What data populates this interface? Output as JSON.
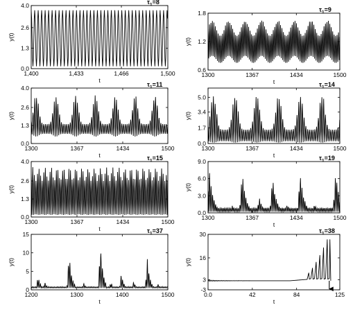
{
  "figure": {
    "colors": {
      "line": "#000000",
      "axes": "#000000",
      "background": "#ffffff"
    }
  },
  "chart_data": [
    {
      "id": "p1",
      "type": "line",
      "title_symbol": "τ",
      "title_sub": "1",
      "title_rest": "=8",
      "xlabel": "t",
      "ylabel": "y(t)",
      "xlim": [
        1400,
        1500
      ],
      "ylim": [
        0,
        4.0
      ],
      "xticks": [
        1400,
        1433,
        1466,
        1500
      ],
      "xtick_labels": [
        "1,400",
        "1,433",
        "1,466",
        "1,500"
      ],
      "yticks": [
        0,
        1.3,
        2.6,
        4.0
      ],
      "ytick_labels": [
        "0.0",
        "1.3",
        "2.6",
        "4.0"
      ],
      "grid": false,
      "series": [
        {
          "pattern": "regular",
          "period": 2.55,
          "min": 0.15,
          "max": 3.7
        }
      ]
    },
    {
      "id": "p2",
      "type": "line",
      "title_symbol": "τ",
      "title_sub": "1",
      "title_rest": "=9",
      "xlabel": "t",
      "ylabel": "y(t)",
      "xlim": [
        1300,
        1500
      ],
      "ylim": [
        0.6,
        1.8
      ],
      "xticks": [
        1300,
        1367,
        1434,
        1500
      ],
      "xtick_labels": [
        "1300",
        "1367",
        "1434",
        "1500"
      ],
      "yticks": [
        0.6,
        1.2,
        1.8
      ],
      "ytick_labels": [
        "0.6",
        "1.2",
        "1.8"
      ],
      "grid": false,
      "series": [
        {
          "pattern": "modulated",
          "period": 2.2,
          "mod_period": 25,
          "base_min": 0.75,
          "base_max": 1.32,
          "peak_max": 1.65,
          "trough_min": 0.9
        }
      ]
    },
    {
      "id": "p3",
      "type": "line",
      "title_symbol": "τ",
      "title_sub": "1",
      "title_rest": "=11",
      "xlabel": "t",
      "ylabel": "y(t)",
      "xlim": [
        1300,
        1500
      ],
      "ylim": [
        0,
        4.0
      ],
      "xticks": [
        1300,
        1367,
        1434,
        1500
      ],
      "xtick_labels": [
        "1300",
        "1367",
        "1434",
        "1500"
      ],
      "yticks": [
        0,
        1.3,
        2.6,
        4.0
      ],
      "ytick_labels": [
        "0.0",
        "1.3",
        "2.6",
        "4.0"
      ],
      "grid": false,
      "series": [
        {
          "pattern": "spiky",
          "period": 2.6,
          "mod_period": 29,
          "base_min": 0.7,
          "base_max": 1.4,
          "peak_max": 3.6,
          "trough_min": 0.5
        }
      ]
    },
    {
      "id": "p4",
      "type": "line",
      "title_symbol": "τ",
      "title_sub": "1",
      "title_rest": "=14",
      "xlabel": "t",
      "ylabel": "y(t)",
      "xlim": [
        1300,
        1500
      ],
      "ylim": [
        0,
        6.0
      ],
      "xticks": [
        1300,
        1367,
        1434,
        1500
      ],
      "xtick_labels": [
        "1300",
        "1367",
        "1434",
        "1500"
      ],
      "yticks": [
        0,
        1.7,
        3.4,
        5.0
      ],
      "ytick_labels": [
        "0.0",
        "1.7",
        "3.4",
        "5.0"
      ],
      "grid": false,
      "series": [
        {
          "pattern": "spiky",
          "period": 2.7,
          "mod_period": 33,
          "base_min": 0.25,
          "base_max": 1.5,
          "peak_max": 5.4,
          "trough_min": 0.1
        }
      ]
    },
    {
      "id": "p5",
      "type": "line",
      "title_symbol": "τ",
      "title_sub": "1",
      "title_rest": "=15",
      "xlabel": "t",
      "ylabel": "y(t)",
      "xlim": [
        1300,
        1500
      ],
      "ylim": [
        0,
        4.0
      ],
      "xticks": [
        1300,
        1367,
        1434,
        1500
      ],
      "xtick_labels": [
        "1300",
        "1367",
        "1434",
        "1500"
      ],
      "yticks": [
        0,
        1.3,
        2.6,
        4.0
      ],
      "ytick_labels": [
        "0.0",
        "1.3",
        "2.6",
        "4.0"
      ],
      "grid": false,
      "series": [
        {
          "pattern": "modulated",
          "period": 2.3,
          "mod_period": 9,
          "base_min": 0.2,
          "base_max": 2.6,
          "peak_max": 3.6,
          "trough_min": 0.15
        }
      ]
    },
    {
      "id": "p6",
      "type": "line",
      "title_symbol": "τ",
      "title_sub": "1",
      "title_rest": "=19",
      "xlabel": "t",
      "ylabel": "y(t)",
      "xlim": [
        1300,
        1500
      ],
      "ylim": [
        0,
        9.0
      ],
      "xticks": [
        1300,
        1367,
        1434,
        1500
      ],
      "xtick_labels": [
        "1300",
        "1367",
        "1434",
        "1500"
      ],
      "yticks": [
        0,
        3.0,
        6.0,
        9.0
      ],
      "ytick_labels": [
        "0.0",
        "3.0",
        "6.0",
        "9.0"
      ],
      "grid": false,
      "series": [
        {
          "pattern": "bursts",
          "period": 2.3,
          "bursts": [
            [
              1302,
              8.1
            ],
            [
              1337,
              1.4
            ],
            [
              1352,
              7.2
            ],
            [
              1378,
              2.6
            ],
            [
              1398,
              6.6
            ],
            [
              1420,
              1.5
            ],
            [
              1440,
              7.0
            ],
            [
              1462,
              1.6
            ],
            [
              1494,
              7.6
            ]
          ],
          "width": 13,
          "floor": 0.2
        }
      ]
    },
    {
      "id": "p7",
      "type": "line",
      "title_symbol": "τ",
      "title_sub": "1",
      "title_rest": "=37",
      "xlabel": "t",
      "ylabel": "y(t)",
      "xlim": [
        1200,
        1500
      ],
      "ylim": [
        0,
        15
      ],
      "xticks": [
        1200,
        1300,
        1400,
        1500
      ],
      "xtick_labels": [
        "1200",
        "1300",
        "1400",
        "1500"
      ],
      "yticks": [
        0,
        5,
        10,
        15
      ],
      "ytick_labels": [
        "0",
        "5",
        "10",
        "15"
      ],
      "grid": false,
      "series": [
        {
          "pattern": "bursts",
          "period": 3.4,
          "bursts": [
            [
              1215,
              3.8
            ],
            [
              1230,
              2.2
            ],
            [
              1283,
              10.6
            ],
            [
              1315,
              2.0
            ],
            [
              1352,
              12.8
            ],
            [
              1375,
              2.2
            ],
            [
              1398,
              4.5
            ],
            [
              1425,
              2.4
            ],
            [
              1455,
              8.4
            ],
            [
              1478,
              1.8
            ]
          ],
          "width": 14,
          "floor": 0.5
        }
      ]
    },
    {
      "id": "p8",
      "type": "line",
      "title_symbol": "τ",
      "title_sub": "1",
      "title_rest": "=38",
      "xlabel": "t",
      "ylabel": "y(t)",
      "xlim": [
        0,
        125
      ],
      "ylim": [
        -3,
        30
      ],
      "xticks": [
        0,
        42,
        84,
        125
      ],
      "xtick_labels": [
        "0.0",
        "42",
        "84",
        "125"
      ],
      "yticks": [
        -3,
        3,
        16,
        30
      ],
      "ytick_labels": [
        "-3",
        "3",
        "16",
        "30"
      ],
      "grid": false,
      "series": [
        {
          "pattern": "blowup",
          "flat_level": 2.4,
          "transient_end": 40,
          "growth_start": 94,
          "growth_end": 115,
          "peak_final": 27,
          "drop_to": -2.5,
          "arrow_x": 115
        }
      ]
    }
  ]
}
